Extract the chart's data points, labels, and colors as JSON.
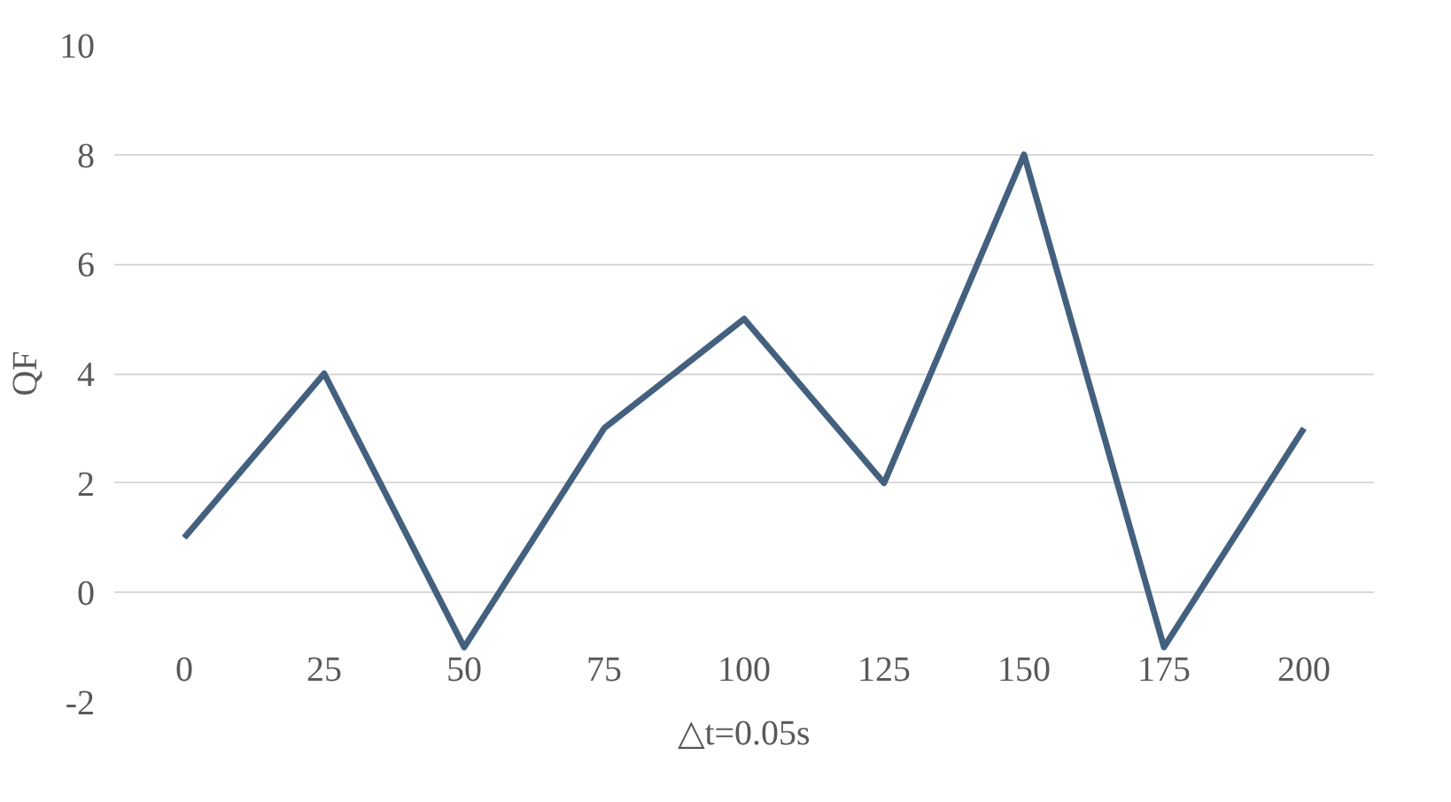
{
  "chart_data": {
    "type": "line",
    "xlabel": "△t=0.05s",
    "ylabel": "QF",
    "categories": [
      "0",
      "25",
      "50",
      "75",
      "100",
      "125",
      "150",
      "175",
      "200"
    ],
    "series": [
      {
        "color": "#44607f",
        "values": [
          1,
          4,
          -1,
          3,
          5,
          2,
          8,
          -1,
          3
        ]
      }
    ],
    "ylim": [
      -2,
      10
    ],
    "yticks": [
      -2,
      0,
      2,
      4,
      6,
      8,
      10
    ],
    "grid": "y",
    "marker": "none",
    "line_style": "solid"
  }
}
